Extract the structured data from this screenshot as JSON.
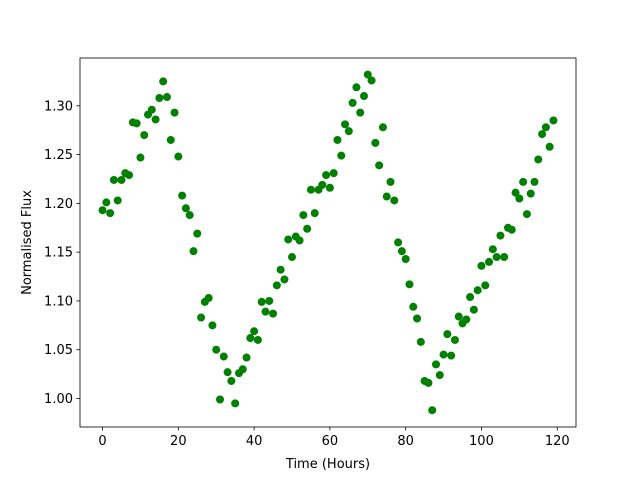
{
  "chart_data": {
    "type": "scatter",
    "x_label": "Time (Hours)",
    "y_label": "Normalised Flux",
    "color": "#008000",
    "x": [
      0,
      1,
      2,
      3,
      4,
      5,
      6,
      7,
      8,
      9,
      10,
      11,
      12,
      13,
      14,
      15,
      16,
      17,
      18,
      19,
      20,
      21,
      22,
      23,
      24,
      25,
      26,
      27,
      28,
      29,
      30,
      31,
      32,
      33,
      34,
      35,
      36,
      37,
      38,
      39,
      40,
      41,
      42,
      43,
      44,
      45,
      46,
      47,
      48,
      49,
      50,
      51,
      52,
      53,
      54,
      55,
      56,
      57,
      58,
      59,
      60,
      61,
      62,
      63,
      64,
      65,
      66,
      67,
      68,
      69,
      70,
      71,
      72,
      73,
      74,
      75,
      76,
      77,
      78,
      79,
      80,
      81,
      82,
      83,
      84,
      85,
      86,
      87,
      88,
      89,
      90,
      91,
      92,
      93,
      94,
      95,
      96,
      97,
      98,
      99,
      100,
      101,
      102,
      103,
      104,
      105,
      106,
      107,
      108,
      109,
      110,
      111,
      112,
      113,
      114,
      115,
      116,
      117,
      118,
      119
    ],
    "values": [
      1.193,
      1.201,
      1.19,
      1.224,
      1.203,
      1.224,
      1.231,
      1.229,
      1.283,
      1.282,
      1.247,
      1.27,
      1.291,
      1.296,
      1.286,
      1.308,
      1.325,
      1.309,
      1.265,
      1.293,
      1.248,
      1.208,
      1.195,
      1.188,
      1.151,
      1.169,
      1.083,
      1.099,
      1.103,
      1.075,
      1.05,
      0.999,
      1.043,
      1.027,
      1.018,
      0.995,
      1.026,
      1.03,
      1.042,
      1.062,
      1.069,
      1.06,
      1.099,
      1.089,
      1.1,
      1.087,
      1.116,
      1.132,
      1.122,
      1.163,
      1.145,
      1.166,
      1.162,
      1.188,
      1.174,
      1.214,
      1.19,
      1.214,
      1.219,
      1.229,
      1.216,
      1.231,
      1.265,
      1.249,
      1.281,
      1.274,
      1.303,
      1.319,
      1.293,
      1.31,
      1.332,
      1.326,
      1.262,
      1.239,
      1.278,
      1.207,
      1.222,
      1.203,
      1.16,
      1.151,
      1.143,
      1.117,
      1.094,
      1.082,
      1.058,
      1.018,
      1.016,
      0.988,
      1.035,
      1.024,
      1.045,
      1.066,
      1.044,
      1.06,
      1.084,
      1.077,
      1.081,
      1.104,
      1.091,
      1.111,
      1.136,
      1.116,
      1.14,
      1.153,
      1.145,
      1.167,
      1.145,
      1.175,
      1.173,
      1.211,
      1.205,
      1.222,
      1.189,
      1.21,
      1.222,
      1.245,
      1.271,
      1.278,
      1.258,
      1.285
    ],
    "xlim": [
      -5.95,
      124.95
    ],
    "xticks": [
      0,
      20,
      40,
      60,
      80,
      100,
      120
    ],
    "ylim": [
      0.9708,
      1.349
    ],
    "yticks": [
      {
        "value": 1,
        "label": "1.00"
      },
      {
        "value": 1.05,
        "label": "1.05"
      },
      {
        "value": 1.1,
        "label": "1.10"
      },
      {
        "value": 1.15,
        "label": "1.15"
      },
      {
        "value": 1.2,
        "label": "1.20"
      },
      {
        "value": 1.25,
        "label": "1.25"
      },
      {
        "value": 1.3,
        "label": "1.30"
      }
    ]
  }
}
